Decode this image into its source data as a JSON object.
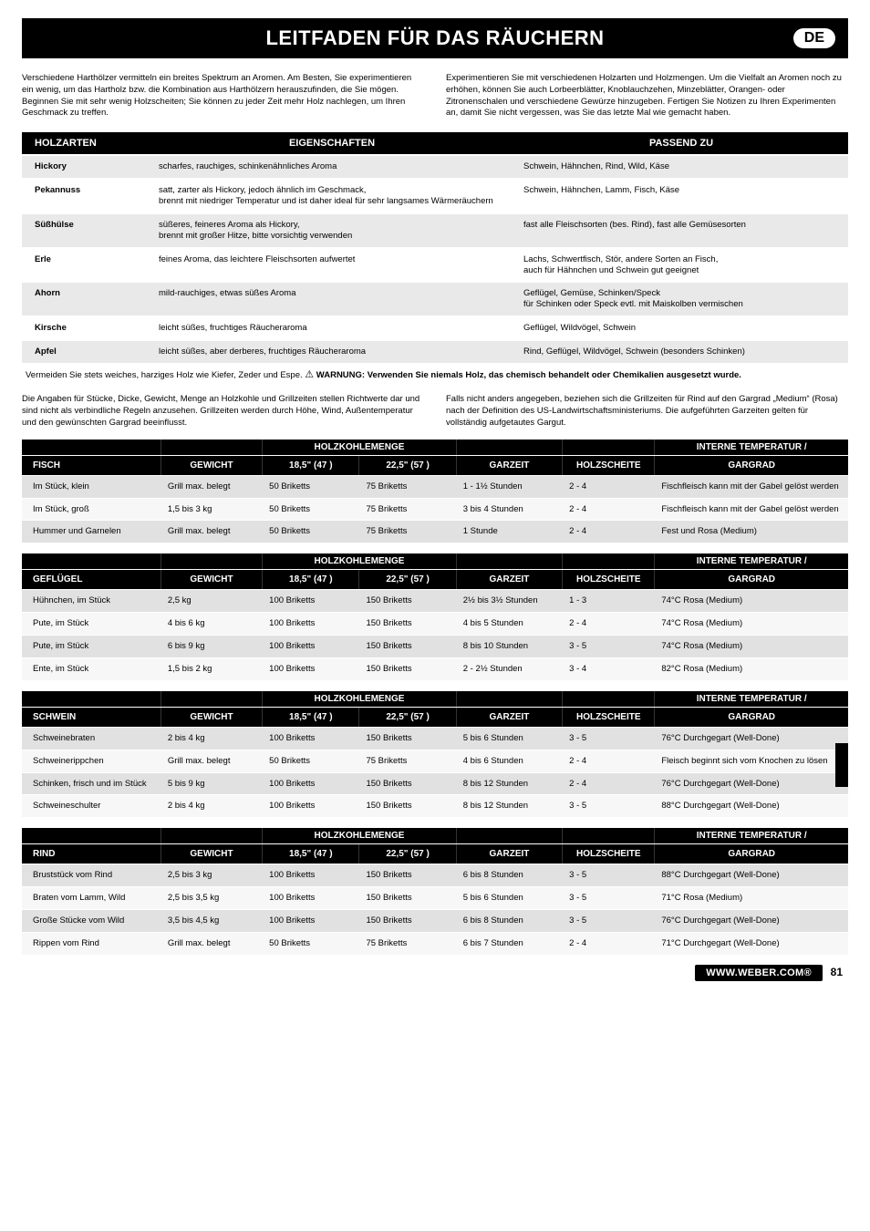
{
  "title": "LEITFADEN FÜR DAS RÄUCHERN",
  "badge": "DE",
  "intro_left": "Verschiedene Harthölzer vermitteln ein breites Spektrum an Aromen. Am Besten, Sie experimentieren ein wenig, um das Hartholz bzw. die Kombination aus Harthölzern herauszufinden, die Sie mögen. Beginnen Sie mit sehr wenig Holzscheiten; Sie können zu jeder Zeit mehr Holz nachlegen, um Ihren Geschmack zu treffen.",
  "intro_right": "Experimentieren Sie mit verschiedenen Holzarten und Holzmengen. Um die Vielfalt an Aromen noch zu erhöhen, können Sie auch Lorbeerblätter, Knoblauchzehen, Minzeblätter, Orangen- oder Zitronenschalen und verschiedene Gewürze hinzugeben. Fertigen Sie Notizen zu Ihren Experimenten an, damit Sie nicht vergessen, was Sie das letzte Mal wie gemacht haben.",
  "wood": {
    "headers": [
      "HOLZARTEN",
      "EIGENSCHAFTEN",
      "PASSEND ZU"
    ],
    "rows": [
      {
        "name": "Hickory",
        "eig": "scharfes, rauchiges, schinkenähnliches Aroma",
        "zu": "Schwein, Hähnchen, Rind, Wild, Käse"
      },
      {
        "name": "Pekannuss",
        "eig": "satt, zarter als Hickory, jedoch ähnlich im Geschmack,\nbrennt mit niedriger Temperatur und ist daher ideal für sehr langsames Wärmeräuchern",
        "zu": "Schwein, Hähnchen, Lamm, Fisch, Käse"
      },
      {
        "name": "Süßhülse",
        "eig": "süßeres, feineres Aroma als Hickory,\nbrennt mit großer Hitze, bitte vorsichtig verwenden",
        "zu": "fast alle Fleischsorten (bes. Rind), fast alle Gemüsesorten"
      },
      {
        "name": "Erle",
        "eig": "feines Aroma, das leichtere Fleischsorten aufwertet",
        "zu": "Lachs, Schwertfisch, Stör, andere Sorten an Fisch,\nauch für Hähnchen und Schwein gut geeignet"
      },
      {
        "name": "Ahorn",
        "eig": "mild-rauchiges, etwas süßes Aroma",
        "zu": "Geflügel, Gemüse, Schinken/Speck\nfür Schinken oder Speck evtl. mit Maiskolben vermischen"
      },
      {
        "name": "Kirsche",
        "eig": "leicht süßes, fruchtiges Räucheraroma",
        "zu": "Geflügel, Wildvögel, Schwein"
      },
      {
        "name": "Apfel",
        "eig": "leicht süßes, aber derberes, fruchtiges Räucheraroma",
        "zu": "Rind, Geflügel, Wildvögel, Schwein (besonders Schinken)"
      }
    ]
  },
  "warn_pre": "Vermeiden Sie stets weiches, harziges Holz wie Kiefer, Zeder und Espe. ",
  "warn_icon": "⚠",
  "warn_bold": "WARNUNG: Verwenden Sie niemals Holz, das chemisch behandelt oder Chemikalien ausgesetzt wurde.",
  "mid_left": "Die Angaben für Stücke, Dicke, Gewicht, Menge an Holzkohle und Grillzeiten stellen Richtwerte dar und sind nicht als verbindliche Regeln anzusehen. Grillzeiten werden durch Höhe, Wind, Außentemperatur und den gewünschten Gargrad beeinflusst.",
  "mid_right": "Falls nicht anders angegeben, beziehen sich die Grillzeiten für Rind auf den Gargrad „Medium“ (Rosa) nach der Definition des US-Landwirtschaftsministeriums. Die aufgeführten Garzeiten gelten für vollständig aufgetautes Gargut.",
  "labels": {
    "gewicht": "GEWICHT",
    "holzkohlemenge": "HOLZKOHLEMENGE",
    "b18": "18,5\" (47 )",
    "b22": "22,5\" (57 )",
    "garzeit": "GARZEIT",
    "holzscheite": "HOLZSCHEITE",
    "interne": "INTERNE TEMPERATUR /",
    "gargrad": "GARGRAD"
  },
  "fisch": {
    "title": "FISCH",
    "rows": [
      {
        "cat": "Im Stück, klein",
        "wt": "Grill max. belegt",
        "b18": "50 Briketts",
        "b22": "75 Briketts",
        "gz": "1 - 1½ Stunden",
        "hs": "2 - 4",
        "gg": "Fischfleisch kann mit der Gabel gelöst werden"
      },
      {
        "cat": "Im Stück, groß",
        "wt": "1,5 bis 3 kg",
        "b18": "50 Briketts",
        "b22": "75 Briketts",
        "gz": "3 bis 4 Stunden",
        "hs": "2 - 4",
        "gg": "Fischfleisch kann mit der Gabel gelöst werden"
      },
      {
        "cat": "Hummer und Garnelen",
        "wt": "Grill max. belegt",
        "b18": "50 Briketts",
        "b22": "75 Briketts",
        "gz": "1 Stunde",
        "hs": "2 - 4",
        "gg": "Fest und Rosa (Medium)"
      }
    ]
  },
  "gefluegel": {
    "title": "GEFLÜGEL",
    "rows": [
      {
        "cat": "Hühnchen, im Stück",
        "wt": "2,5 kg",
        "b18": "100 Briketts",
        "b22": "150 Briketts",
        "gz": "2½ bis 3½ Stunden",
        "hs": "1 - 3",
        "gg": "74°C Rosa (Medium)"
      },
      {
        "cat": "Pute, im Stück",
        "wt": "4 bis 6 kg",
        "b18": "100 Briketts",
        "b22": "150 Briketts",
        "gz": "4 bis 5 Stunden",
        "hs": "2 - 4",
        "gg": "74°C Rosa (Medium)"
      },
      {
        "cat": "Pute, im Stück",
        "wt": "6 bis 9 kg",
        "b18": "100 Briketts",
        "b22": "150 Briketts",
        "gz": "8 bis 10 Stunden",
        "hs": "3 - 5",
        "gg": "74°C Rosa (Medium)"
      },
      {
        "cat": "Ente, im Stück",
        "wt": "1,5 bis 2 kg",
        "b18": "100 Briketts",
        "b22": "150 Briketts",
        "gz": "2 - 2½ Stunden",
        "hs": "3 - 4",
        "gg": "82°C Rosa (Medium)"
      }
    ]
  },
  "schwein": {
    "title": "SCHWEIN",
    "rows": [
      {
        "cat": "Schweinebraten",
        "wt": "2 bis 4 kg",
        "b18": "100 Briketts",
        "b22": "150 Briketts",
        "gz": "5 bis 6 Stunden",
        "hs": "3 - 5",
        "gg": "76°C Durchgegart (Well-Done)"
      },
      {
        "cat": "Schweinerippchen",
        "wt": "Grill max. belegt",
        "b18": "50 Briketts",
        "b22": "75 Briketts",
        "gz": "4 bis 6 Stunden",
        "hs": "2 - 4",
        "gg": "Fleisch beginnt sich vom Knochen zu lösen"
      },
      {
        "cat": "Schinken, frisch und im Stück",
        "wt": "5 bis 9 kg",
        "b18": "100 Briketts",
        "b22": "150 Briketts",
        "gz": "8 bis 12 Stunden",
        "hs": "2 - 4",
        "gg": "76°C Durchgegart (Well-Done)"
      },
      {
        "cat": "Schweineschulter",
        "wt": "2 bis 4 kg",
        "b18": "100 Briketts",
        "b22": "150 Briketts",
        "gz": "8 bis 12 Stunden",
        "hs": "3 - 5",
        "gg": "88°C Durchgegart (Well-Done)"
      }
    ]
  },
  "rind": {
    "title": "RIND",
    "rows": [
      {
        "cat": "Bruststück vom Rind",
        "wt": "2,5 bis 3 kg",
        "b18": "100 Briketts",
        "b22": "150 Briketts",
        "gz": "6 bis 8 Stunden",
        "hs": "3 - 5",
        "gg": "88°C Durchgegart (Well-Done)"
      },
      {
        "cat": "Braten vom Lamm, Wild",
        "wt": "2,5 bis 3,5 kg",
        "b18": "100 Briketts",
        "b22": "150 Briketts",
        "gz": "5 bis 6 Stunden",
        "hs": "3 - 5",
        "gg": "71°C Rosa (Medium)"
      },
      {
        "cat": "Große Stücke vom Wild",
        "wt": "3,5 bis 4,5 kg",
        "b18": "100 Briketts",
        "b22": "150 Briketts",
        "gz": "6 bis 8 Stunden",
        "hs": "3 - 5",
        "gg": "76°C Durchgegart (Well-Done)"
      },
      {
        "cat": "Rippen vom Rind",
        "wt": "Grill max. belegt",
        "b18": "50 Briketts",
        "b22": "75 Briketts",
        "gz": "6 bis 7 Stunden",
        "hs": "2 - 4",
        "gg": "71°C Durchgegart (Well-Done)"
      }
    ]
  },
  "footer_link": "WWW.WEBER.COM®",
  "footer_page": "81"
}
